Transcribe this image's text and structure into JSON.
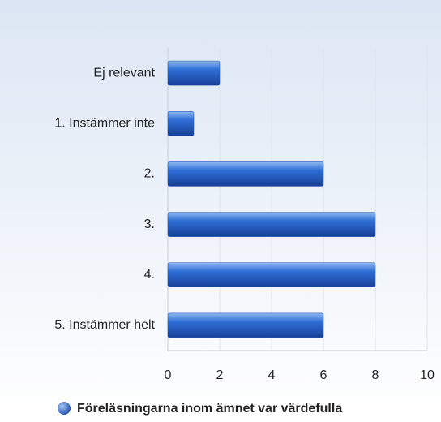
{
  "chart_data": {
    "type": "bar",
    "orientation": "horizontal",
    "categories": [
      "Ej relevant",
      "1. Instämmer inte",
      "2.",
      "3.",
      "4.",
      "5. Instämmer helt"
    ],
    "series": [
      {
        "name": "Föreläsningarna inom ämnet var värdefulla",
        "color": "#2f6fd6",
        "values": [
          2,
          1,
          6,
          8,
          8,
          6
        ]
      }
    ],
    "xlim": [
      0,
      10
    ],
    "xticks": [
      0,
      2,
      4,
      6,
      8,
      10
    ],
    "grid": true,
    "legend": "bottom"
  }
}
